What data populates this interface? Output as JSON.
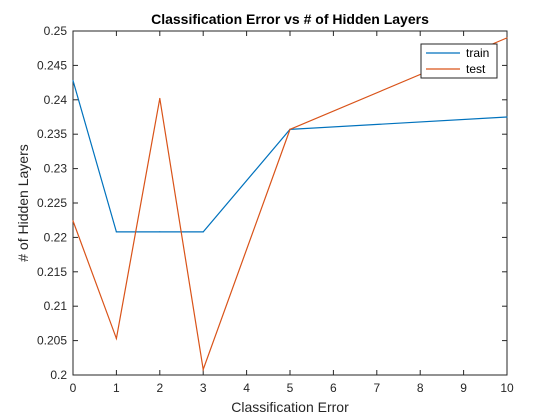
{
  "chart_data": {
    "type": "line",
    "title": "Classification Error vs # of Hidden Layers",
    "xlabel": "Classification Error",
    "ylabel": "# of Hidden Layers",
    "x": [
      0,
      1,
      2,
      3,
      5,
      10
    ],
    "series": [
      {
        "name": "train",
        "color": "#0072BD",
        "values": [
          0.2428,
          0.2208,
          0.2208,
          0.2208,
          0.2357,
          0.2375
        ]
      },
      {
        "name": "test",
        "color": "#D95319",
        "values": [
          0.2224,
          0.2053,
          0.2402,
          0.2008,
          0.2357,
          0.249
        ]
      }
    ],
    "xlim": [
      0,
      10
    ],
    "ylim": [
      0.2,
      0.25
    ],
    "xticks": [
      "0",
      "1",
      "2",
      "3",
      "4",
      "5",
      "6",
      "7",
      "8",
      "9",
      "10"
    ],
    "yticks": [
      "0.2",
      "0.205",
      "0.21",
      "0.215",
      "0.22",
      "0.225",
      "0.23",
      "0.235",
      "0.24",
      "0.245",
      "0.25"
    ],
    "grid": false,
    "legend_position": "top-right"
  }
}
